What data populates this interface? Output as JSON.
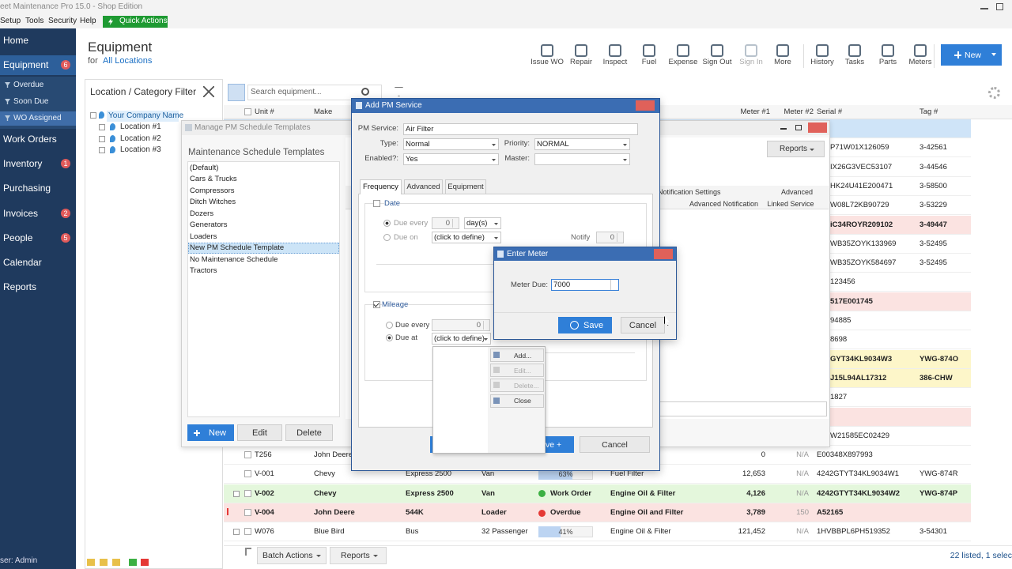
{
  "window": {
    "title": "eet Maintenance Pro 15.0 - Shop Edition"
  },
  "menu": {
    "items": [
      "Setup",
      "Tools",
      "Security",
      "Help"
    ],
    "quick_actions": "Quick Actions"
  },
  "sidebar": {
    "nav": [
      {
        "label": "Home"
      },
      {
        "label": "Equipment",
        "badge": 6
      }
    ],
    "filters": [
      "Overdue",
      "Soon Due",
      "WO Assigned"
    ],
    "modules": [
      {
        "label": "Work Orders"
      },
      {
        "label": "Inventory",
        "badge": 1
      },
      {
        "label": "Purchasing"
      },
      {
        "label": "Invoices",
        "badge": 2
      },
      {
        "label": "People",
        "badge": 5
      },
      {
        "label": "Calendar"
      },
      {
        "label": "Reports"
      }
    ],
    "user": "ser: Admin"
  },
  "header": {
    "title": "Equipment",
    "for": "for",
    "location": "All Locations"
  },
  "toolbar": {
    "buttons": [
      "Issue WO",
      "Repair",
      "Inspect",
      "Fuel",
      "Expense",
      "Sign Out",
      "Sign In",
      "More",
      "History",
      "Tasks",
      "Parts",
      "Meters"
    ],
    "new": "New"
  },
  "filter_panel": {
    "title": "Location / Category Filter",
    "tree": {
      "root": "Your Company Name",
      "children": [
        "Location #1",
        "Location #2",
        "Location #3"
      ]
    }
  },
  "grid": {
    "search": "Search equipment...",
    "columns": {
      "unit": "Unit #",
      "make": "Make",
      "meter1": "Meter #1",
      "meter2": "Meter #2",
      "serial": "Serial #",
      "tag": "Tag #"
    },
    "rows": [
      {
        "color": "#cfe4f8"
      },
      {
        "serial": "P71W01X126059",
        "tag": "3-42561"
      },
      {
        "serial": "IX26G3VEC53107",
        "tag": "3-44546"
      },
      {
        "serial": "HK24U41E200471",
        "tag": "3-58500"
      },
      {
        "serial": "W08L72KB90729",
        "tag": "3-53229"
      },
      {
        "serial": "iC34ROYR209102",
        "tag": "3-49447",
        "color": "#fbe3e1",
        "bold": true
      },
      {
        "serial": "WB35ZOYK133969",
        "tag": "3-52495"
      },
      {
        "serial": "WB35ZOYK584697",
        "tag": "3-52495"
      },
      {
        "serial": "123456"
      },
      {
        "serial": "517E001745",
        "color": "#fbe3e1",
        "bold": true
      },
      {
        "serial": "94885"
      },
      {
        "serial": "8698"
      },
      {
        "serial": "GYT34KL9034W3",
        "tag": "YWG-874O",
        "color": "#fdf6c9",
        "bold": true
      },
      {
        "serial": "J15L94AL17312",
        "tag": "386-CHW",
        "color": "#fdf6c9",
        "bold": true
      },
      {
        "serial": "1827"
      },
      {
        "color": "#fbe3e1"
      },
      {
        "serial": "W21585EC02429"
      },
      {
        "unit": "T256",
        "make": "John Deere",
        "meter1": 0,
        "meter2": "N/A",
        "serial": "E00348X897993"
      },
      {
        "unit": "V-001",
        "make": "Chevy",
        "model": "Express 2500",
        "type": "Van",
        "progress": {
          "value": 63,
          "label": "63%"
        },
        "pm": "Fuel Filter",
        "meter1": "12,653",
        "meter2": "N/A",
        "serial": "4242GTYT34KL9034W1",
        "tag": "YWG-874R"
      },
      {
        "unit": "V-002",
        "make": "Chevy",
        "model": "Express 2500",
        "type": "Van",
        "status": {
          "label": "Work Order",
          "color": "#3cb043"
        },
        "pm": "Engine Oil & Filter",
        "meter1": "4,126",
        "meter2": "N/A",
        "serial": "4242GTYT34KL9034W2",
        "tag": "YWG-874P",
        "color": "#e4f7dc",
        "bold": true
      },
      {
        "unit": "V-004",
        "make": "John Deere",
        "model": "544K",
        "type": "Loader",
        "status": {
          "label": "Overdue",
          "color": "#e53935"
        },
        "pm": "Engine Oil and Filter",
        "meter1": "3,789",
        "meter2": 150,
        "serial": "A52165",
        "color": "#fbe3e1",
        "bold": true
      },
      {
        "unit": "W076",
        "make": "Blue Bird",
        "model": "Bus",
        "type": "32 Passenger",
        "progress": {
          "value": 41,
          "label": "41%"
        },
        "pm": "Engine Oil & Filter",
        "meter1": "121,452",
        "meter2": "N/A",
        "serial": "1HVBBPL6PH519352",
        "tag": "3-54301"
      }
    ]
  },
  "status_bar": {
    "batch_actions": "Batch Actions",
    "reports": "Reports",
    "count": "22 listed, 1 selec"
  },
  "manage_dialog": {
    "title": "Manage PM Schedule Templates",
    "heading": "Maintenance Schedule Templates",
    "templates": [
      "(Default)",
      "Cars & Trucks",
      "Compressors",
      "Ditch Witches",
      "Dozers",
      "Generators",
      "Loaders",
      "New PM Schedule Template",
      "No Maintenance Schedule",
      "Tractors"
    ],
    "selected": 7,
    "buttons": {
      "new": "New",
      "edit": "Edit",
      "delete": "Delete"
    },
    "reports": "Reports",
    "columns": [
      "Notification Settings",
      "Advanced Notification",
      "Advanced",
      "Linked Service"
    ]
  },
  "add_pm": {
    "title": "Add PM Service",
    "fields": {
      "pm_service": {
        "label": "PM Service:",
        "value": "Air Filter"
      },
      "type": {
        "label": "Type:",
        "value": "Normal"
      },
      "priority": {
        "label": "Priority:",
        "value": "NORMAL"
      },
      "enabled": {
        "label": "Enabled?:",
        "value": "Yes"
      },
      "master": {
        "label": "Master:"
      }
    },
    "tabs": [
      "Frequency",
      "Advanced",
      "Equipment"
    ],
    "date": {
      "label": "Date",
      "due_every": "Due every",
      "every_value": 0,
      "unit": "day(s)",
      "due_on": "Due on",
      "on_value": "(click to define)",
      "notify": "Notify",
      "notify_value": 0
    },
    "mileage": {
      "label": "Mileage",
      "due_every": "Due every",
      "every_value": 0,
      "due_at": "Due at",
      "at_value": "(click to define)"
    },
    "save": "ve +",
    "cancel": "Cancel"
  },
  "popup_menu": [
    "Add...",
    "Edit...",
    "Delete...",
    "Close"
  ],
  "enter_meter": {
    "title": "Enter Meter",
    "label": "Meter Due:",
    "value": 7000,
    "save": "Save",
    "cancel": "Cancel"
  }
}
